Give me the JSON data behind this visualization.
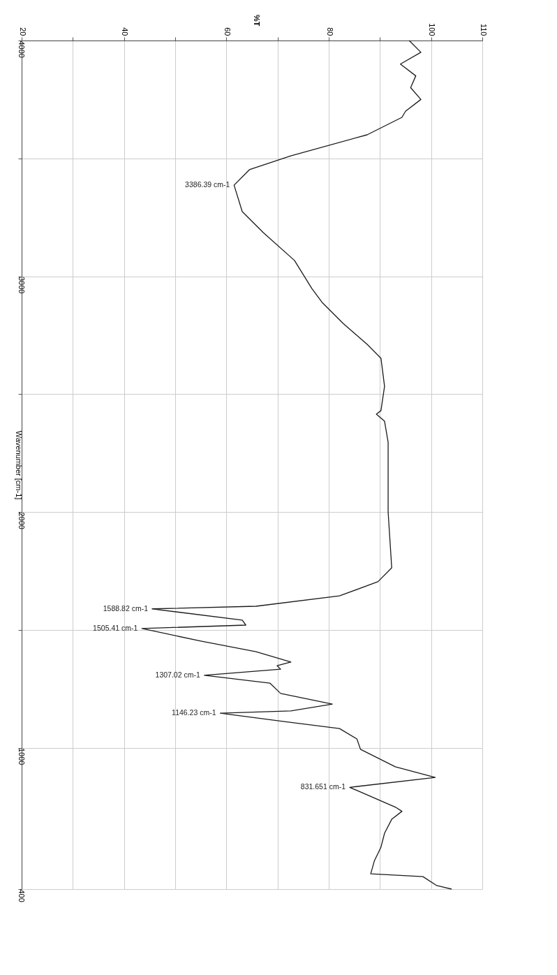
{
  "chart_data": {
    "type": "line",
    "orientation": "horizontal",
    "x2label": "%T",
    "ylabel": "Wavenumber [cm-1]",
    "x2lim": [
      20,
      110
    ],
    "x2ticks": [
      20,
      {
        "value": 30,
        "label": null
      },
      40,
      {
        "value": 50,
        "label": null
      },
      60,
      {
        "value": 70,
        "label": null
      },
      80,
      {
        "value": 90,
        "label": null
      },
      100,
      110
    ],
    "ylim": [
      400,
      4000
    ],
    "yticks": [
      4000,
      {
        "value": 3500,
        "label": null
      },
      3000,
      {
        "value": 2500,
        "label": null
      },
      2000,
      {
        "value": 1500,
        "label": null
      },
      1000,
      400
    ],
    "grid": true,
    "marker": "none",
    "line_style": "solid",
    "series": [
      {
        "color": "#1a1a1a",
        "axis": "x2",
        "x": [
          4000,
          3950,
          3900,
          3850,
          3800,
          3750,
          3700,
          3674,
          3600,
          3511,
          3452,
          3386.39,
          3274,
          3185,
          3067,
          2948,
          2889,
          2800,
          2711,
          2652,
          2533,
          2430,
          2415,
          2385,
          2296,
          2000,
          1763,
          1704,
          1644,
          1600,
          1588.82,
          1541,
          1520,
          1505.41,
          1452,
          1407,
          1363,
          1348,
          1333,
          1307.02,
          1274,
          1230,
          1185,
          1156,
          1146.23,
          1111,
          1081,
          1037,
          993,
          919,
          874,
          831.651,
          748,
          730,
          696,
          637,
          578,
          519,
          465,
          453,
          415,
          400
        ],
        "values": [
          95.7,
          98,
          94,
          97,
          96,
          98,
          95,
          94.3,
          87.5,
          72.6,
          64.5,
          61.5,
          63.1,
          67.2,
          73.3,
          76.7,
          78.7,
          82.8,
          87.5,
          90.2,
          90.9,
          90.2,
          89.3,
          90.9,
          91.6,
          91.6,
          92.3,
          89.6,
          82.1,
          65.8,
          45.5,
          63.1,
          63.8,
          43.5,
          55,
          65.8,
          72.6,
          69.9,
          70.6,
          55.7,
          68.5,
          70.6,
          80.7,
          72.6,
          58.8,
          71.3,
          82.1,
          85.5,
          86.2,
          93,
          100.8,
          84.1,
          93,
          94.3,
          92.3,
          90.9,
          90.2,
          88.9,
          88.2,
          98.4,
          101.1,
          104
        ]
      }
    ],
    "annotations": [
      {
        "text": "3386.39 cm-1",
        "x": 61.5,
        "y": 3386.39
      },
      {
        "text": "1588.82 cm-1",
        "x": 45.5,
        "y": 1588.82
      },
      {
        "text": "1505.41 cm-1",
        "x": 43.5,
        "y": 1505.41
      },
      {
        "text": "1307.02 cm-1",
        "x": 55.7,
        "y": 1307.02
      },
      {
        "text": "1146.23 cm-1",
        "x": 58.8,
        "y": 1146.23
      },
      {
        "text": "831.651 cm-1",
        "x": 84.1,
        "y": 831.651
      }
    ]
  }
}
